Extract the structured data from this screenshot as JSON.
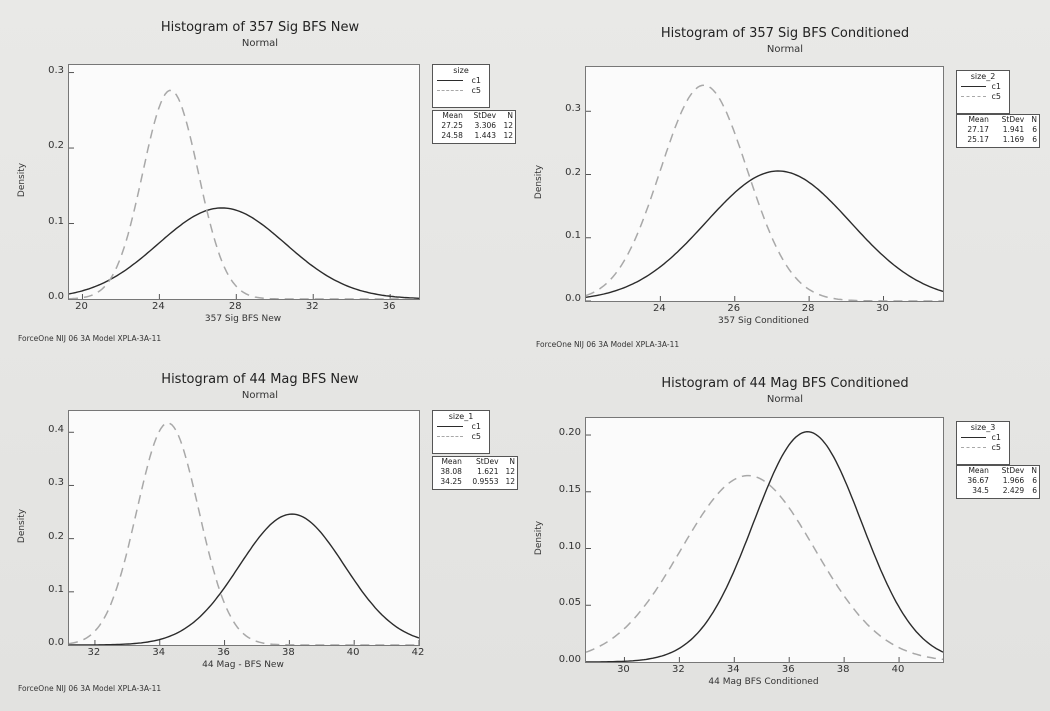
{
  "chart_data": [
    {
      "type": "line",
      "title": "Histogram of 357 Sig BFS New",
      "subtitle": "Normal",
      "xlabel": "357 Sig BFS New",
      "ylabel": "Density",
      "xlim": [
        19.3,
        37.5
      ],
      "ylim": [
        0,
        0.31
      ],
      "xticks": [
        "20",
        "24",
        "28",
        "32",
        "36"
      ],
      "xtick_values": [
        20,
        24,
        28,
        32,
        36
      ],
      "yticks": [
        "0.0",
        "0.1",
        "0.2",
        "0.3"
      ],
      "ytick_values": [
        0,
        0.1,
        0.2,
        0.3
      ],
      "legend_title": "size",
      "series": [
        {
          "name": "c1",
          "mean": 27.25,
          "stdev": 3.306,
          "n": 12,
          "mean_label": "27.25",
          "stdev_label": "3.306",
          "n_label": "12",
          "style": "solid",
          "color": "#2b2b2b"
        },
        {
          "name": "c5",
          "mean": 24.58,
          "stdev": 1.443,
          "n": 12,
          "mean_label": "24.58",
          "stdev_label": "1.443",
          "n_label": "12",
          "style": "dashed",
          "color": "#a8a8a8"
        }
      ],
      "stat_headers": [
        "Mean",
        "StDev",
        "N"
      ],
      "footer": "ForceOne NIJ 06 3A Model XPLA-3A-11"
    },
    {
      "type": "line",
      "title": "Histogram of 357 Sig BFS Conditioned",
      "subtitle": "Normal",
      "xlabel": "357 Sig Conditioned",
      "ylabel": "Density",
      "xlim": [
        22.0,
        31.6
      ],
      "ylim": [
        0,
        0.37
      ],
      "xticks": [
        "24",
        "26",
        "28",
        "30"
      ],
      "xtick_values": [
        24,
        26,
        28,
        30
      ],
      "yticks": [
        "0.0",
        "0.1",
        "0.2",
        "0.3"
      ],
      "ytick_values": [
        0,
        0.1,
        0.2,
        0.3
      ],
      "legend_title": "size_2",
      "series": [
        {
          "name": "c1",
          "mean": 27.17,
          "stdev": 1.941,
          "n": 6,
          "mean_label": "27.17",
          "stdev_label": "1.941",
          "n_label": "6",
          "style": "solid",
          "color": "#2b2b2b"
        },
        {
          "name": "c5",
          "mean": 25.17,
          "stdev": 1.169,
          "n": 6,
          "mean_label": "25.17",
          "stdev_label": "1.169",
          "n_label": "6",
          "style": "dashed",
          "color": "#a8a8a8"
        }
      ],
      "stat_headers": [
        "Mean",
        "StDev",
        "N"
      ],
      "footer": "ForceOne NIJ 06 3A Model XPLA-3A-11"
    },
    {
      "type": "line",
      "title": "Histogram of 44 Mag BFS New",
      "subtitle": "Normal",
      "xlabel": "44 Mag - BFS New",
      "ylabel": "Density",
      "xlim": [
        31.2,
        42.0
      ],
      "ylim": [
        0,
        0.44
      ],
      "xticks": [
        "32",
        "34",
        "36",
        "38",
        "40",
        "42"
      ],
      "xtick_values": [
        32,
        34,
        36,
        38,
        40,
        42
      ],
      "yticks": [
        "0.0",
        "0.1",
        "0.2",
        "0.3",
        "0.4"
      ],
      "ytick_values": [
        0,
        0.1,
        0.2,
        0.3,
        0.4
      ],
      "legend_title": "size_1",
      "series": [
        {
          "name": "c1",
          "mean": 38.08,
          "stdev": 1.621,
          "n": 12,
          "mean_label": "38.08",
          "stdev_label": "1.621",
          "n_label": "12",
          "style": "solid",
          "color": "#2b2b2b"
        },
        {
          "name": "c5",
          "mean": 34.25,
          "stdev": 0.9553,
          "n": 12,
          "mean_label": "34.25",
          "stdev_label": "0.9553",
          "n_label": "12",
          "style": "dashed",
          "color": "#a8a8a8"
        }
      ],
      "stat_headers": [
        "Mean",
        "StDev",
        "N"
      ],
      "footer": "ForceOne NIJ 06 3A Model XPLA-3A-11"
    },
    {
      "type": "line",
      "title": "Histogram of 44 Mag BFS Conditioned",
      "subtitle": "Normal",
      "xlabel": "44 Mag BFS Conditioned",
      "ylabel": "Density",
      "xlim": [
        28.6,
        41.6
      ],
      "ylim": [
        0,
        0.215
      ],
      "xticks": [
        "30",
        "32",
        "34",
        "36",
        "38",
        "40"
      ],
      "xtick_values": [
        30,
        32,
        34,
        36,
        38,
        40
      ],
      "yticks": [
        "0.00",
        "0.05",
        "0.10",
        "0.15",
        "0.20"
      ],
      "ytick_values": [
        0,
        0.05,
        0.1,
        0.15,
        0.2
      ],
      "legend_title": "size_3",
      "series": [
        {
          "name": "c1",
          "mean": 36.67,
          "stdev": 1.966,
          "n": 6,
          "mean_label": "36.67",
          "stdev_label": "1.966",
          "n_label": "6",
          "style": "solid",
          "color": "#2b2b2b"
        },
        {
          "name": "c5",
          "mean": 34.5,
          "stdev": 2.429,
          "n": 6,
          "mean_label": "34.5",
          "stdev_label": "2.429",
          "n_label": "6",
          "style": "dashed",
          "color": "#a8a8a8"
        }
      ],
      "stat_headers": [
        "Mean",
        "StDev",
        "N"
      ],
      "footer": ""
    }
  ]
}
